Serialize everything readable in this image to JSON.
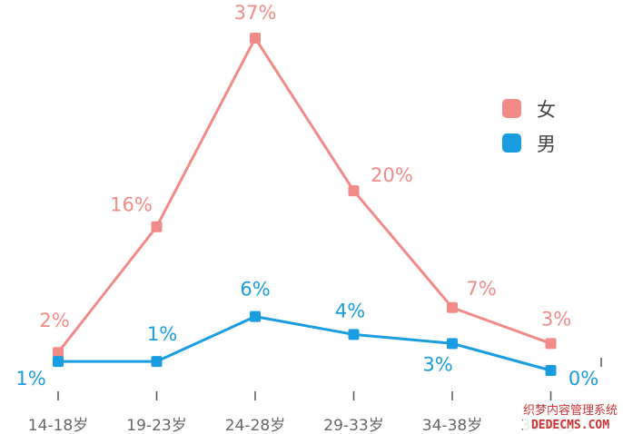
{
  "chart_data": {
    "type": "line",
    "categories": [
      "14-18岁",
      "19-23岁",
      "24-28岁",
      "29-33岁",
      "34-38岁",
      "39-48岁"
    ],
    "series": [
      {
        "name": "女",
        "color": "#f28b88",
        "values": [
          2,
          16,
          37,
          20,
          7,
          3
        ],
        "labels": [
          "2%",
          "16%",
          "37%",
          "20%",
          "7%",
          "3%"
        ]
      },
      {
        "name": "男",
        "color": "#1a9de0",
        "values": [
          1,
          1,
          6,
          4,
          3,
          0
        ],
        "labels": [
          "1%",
          "1%",
          "6%",
          "4%",
          "3%",
          "0%"
        ]
      }
    ],
    "ylim": [
      0,
      37
    ],
    "legend_position": "top-right",
    "grid": false
  },
  "watermark": {
    "line1": "织梦内容管理系统",
    "line2": "DEDECMS.COM"
  }
}
